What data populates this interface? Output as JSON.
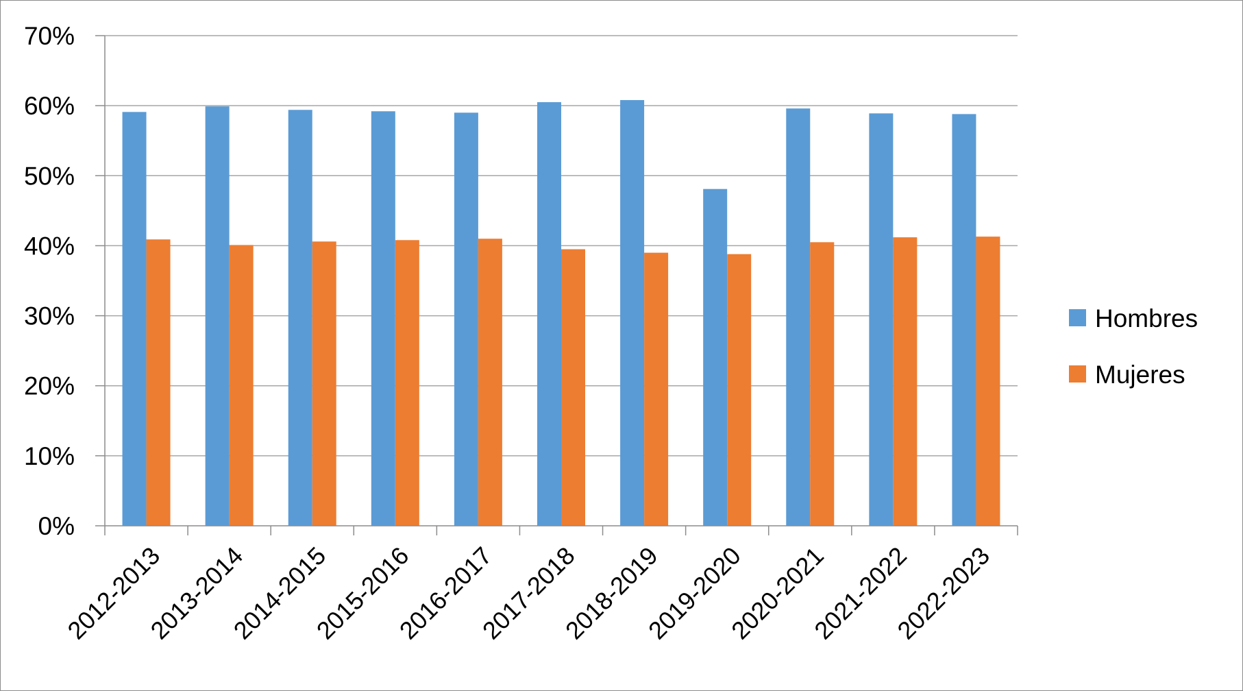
{
  "chart_data": {
    "type": "bar",
    "title": "",
    "xlabel": "",
    "ylabel": "",
    "categories": [
      "2012-2013",
      "2013-2014",
      "2014-2015",
      "2015-2016",
      "2016-2017",
      "2017-2018",
      "2018-2019",
      "2019-2020",
      "2020-2021",
      "2021-2022",
      "2022-2023"
    ],
    "series": [
      {
        "name": "Hombres",
        "color": "#5b9bd5",
        "values": [
          59.1,
          59.9,
          59.4,
          59.2,
          59.0,
          60.5,
          60.8,
          48.1,
          59.6,
          58.9,
          58.8
        ]
      },
      {
        "name": "Mujeres",
        "color": "#ed7d31",
        "values": [
          40.9,
          40.1,
          40.6,
          40.8,
          41.0,
          39.5,
          39.0,
          38.8,
          40.5,
          41.2,
          41.3
        ]
      }
    ],
    "ylim": [
      0,
      70
    ],
    "yticks": [
      "0%",
      "10%",
      "20%",
      "30%",
      "40%",
      "50%",
      "60%",
      "70%"
    ],
    "grid": true,
    "legend_position": "right"
  }
}
